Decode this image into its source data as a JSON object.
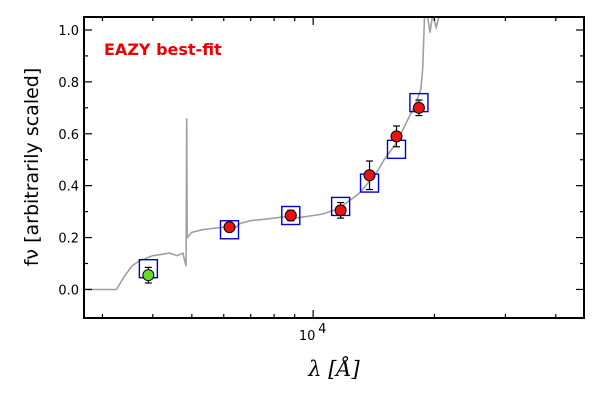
{
  "chart_data": {
    "type": "scatter",
    "title": "",
    "xlabel": "λ [Å]",
    "ylabel": "fν [arbitrarily scaled]",
    "xscale": "log",
    "xlim": [
      2700,
      47000
    ],
    "ylim": [
      -0.11,
      1.05
    ],
    "x_ticks": [
      {
        "value": 10000,
        "label": "10",
        "exponent": "4"
      }
    ],
    "y_ticks": [
      0.0,
      0.2,
      0.4,
      0.6,
      0.8,
      1.0
    ],
    "y_tick_labels": [
      "0.0",
      "0.2",
      "0.4",
      "0.6",
      "0.8",
      "1.0"
    ],
    "grid": false,
    "annotation": {
      "text": "EAZY best-fit",
      "color": "#ee0000"
    },
    "colors": {
      "template": "#a0a0a0",
      "model_box": "#0000cc",
      "observed": "#ee1111",
      "observed_first": "#66dd22"
    },
    "series": [
      {
        "kind": "line",
        "points": [
          [
            2700,
            0.0
          ],
          [
            3250,
            0.0
          ],
          [
            3400,
            0.05
          ],
          [
            3550,
            0.09
          ],
          [
            3700,
            0.11
          ],
          [
            3850,
            0.12
          ],
          [
            4000,
            0.13
          ],
          [
            4200,
            0.135
          ],
          [
            4400,
            0.14
          ],
          [
            4600,
            0.13
          ],
          [
            4750,
            0.14
          ],
          [
            4820,
            0.1
          ],
          [
            4840,
            0.09
          ],
          [
            4855,
            0.66
          ],
          [
            4870,
            0.2
          ],
          [
            5000,
            0.22
          ],
          [
            5300,
            0.23
          ],
          [
            5600,
            0.235
          ],
          [
            6000,
            0.24
          ],
          [
            6300,
            0.23
          ],
          [
            6600,
            0.255
          ],
          [
            7000,
            0.265
          ],
          [
            7500,
            0.27
          ],
          [
            8000,
            0.275
          ],
          [
            8500,
            0.28
          ],
          [
            9000,
            0.275
          ],
          [
            9500,
            0.28
          ],
          [
            10000,
            0.285
          ],
          [
            10500,
            0.29
          ],
          [
            11000,
            0.3
          ],
          [
            11500,
            0.31
          ],
          [
            12000,
            0.33
          ],
          [
            12500,
            0.35
          ],
          [
            13000,
            0.37
          ],
          [
            13500,
            0.4
          ],
          [
            14000,
            0.43
          ],
          [
            14500,
            0.46
          ],
          [
            15000,
            0.5
          ],
          [
            15500,
            0.53
          ],
          [
            16000,
            0.56
          ],
          [
            16500,
            0.6
          ],
          [
            17000,
            0.64
          ],
          [
            17500,
            0.68
          ],
          [
            18000,
            0.72
          ],
          [
            18500,
            0.77
          ],
          [
            18700,
            0.85
          ],
          [
            18900,
            1.06
          ],
          [
            19200,
            1.06
          ],
          [
            19500,
            0.99
          ],
          [
            19800,
            1.06
          ],
          [
            20200,
            1.01
          ],
          [
            20600,
            1.06
          ]
        ]
      },
      {
        "kind": "model",
        "points": [
          [
            3900,
            0.08
          ],
          [
            6200,
            0.23
          ],
          [
            8800,
            0.285
          ],
          [
            11700,
            0.32
          ],
          [
            13800,
            0.41
          ],
          [
            16100,
            0.54
          ],
          [
            18300,
            0.72
          ]
        ]
      },
      {
        "kind": "observed",
        "points": [
          {
            "x": 3900,
            "y": 0.055,
            "err": 0.03
          },
          {
            "x": 6200,
            "y": 0.24,
            "err": 0.015
          },
          {
            "x": 8800,
            "y": 0.285,
            "err": 0.02
          },
          {
            "x": 11700,
            "y": 0.305,
            "err": 0.03
          },
          {
            "x": 13800,
            "y": 0.44,
            "err": 0.055
          },
          {
            "x": 16100,
            "y": 0.59,
            "err": 0.04
          },
          {
            "x": 18300,
            "y": 0.7,
            "err": 0.03
          }
        ]
      }
    ]
  }
}
